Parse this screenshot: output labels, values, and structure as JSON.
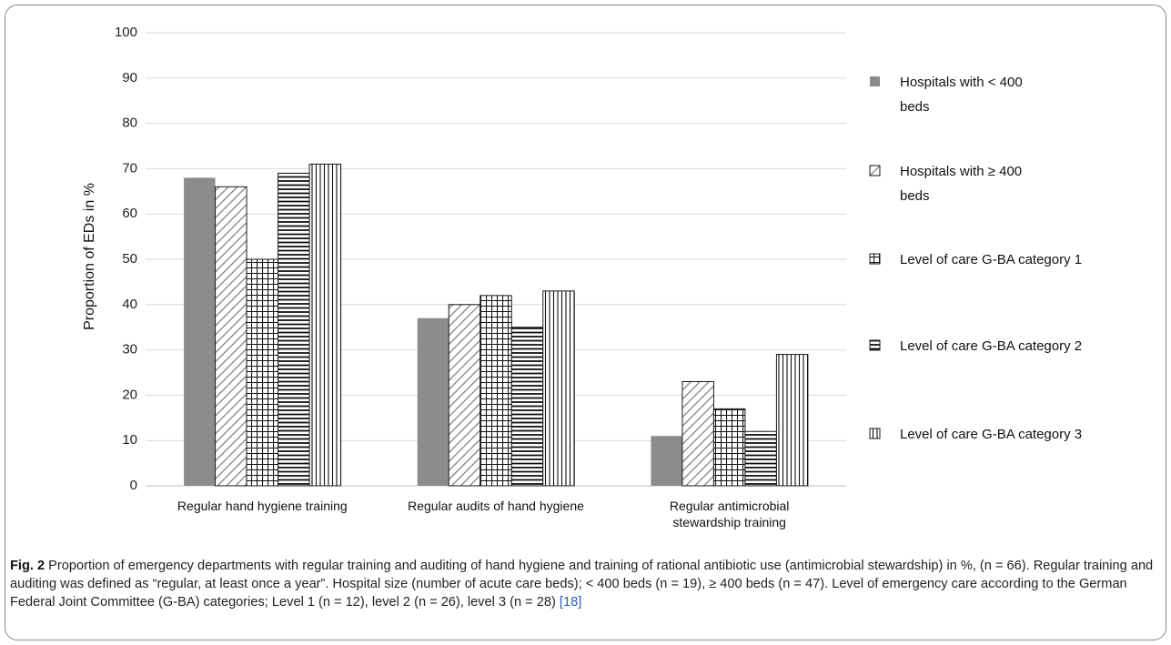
{
  "chart_data": {
    "type": "bar",
    "title": "",
    "xlabel": "",
    "ylabel": "Proportion of EDs in %",
    "ylim": [
      0,
      100
    ],
    "yticks": [
      0,
      10,
      20,
      30,
      40,
      50,
      60,
      70,
      80,
      90,
      100
    ],
    "grid": true,
    "legend_position": "right",
    "categories": [
      [
        "Regular hand hygiene training"
      ],
      [
        "Regular audits of hand hygiene"
      ],
      [
        "Regular antimicrobial",
        "stewardship training"
      ]
    ],
    "series": [
      {
        "name_lines": [
          "Hospitals with < 400",
          "beds"
        ],
        "pattern": "solid-gray",
        "values": [
          68,
          37,
          11
        ]
      },
      {
        "name_lines": [
          "Hospitals with ≥ 400",
          "beds"
        ],
        "pattern": "diagonal-hatch",
        "values": [
          66,
          40,
          23
        ]
      },
      {
        "name_lines": [
          "Level of care G-BA category 1"
        ],
        "pattern": "grid",
        "values": [
          50,
          42,
          17
        ]
      },
      {
        "name_lines": [
          "Level of care G-BA category 2"
        ],
        "pattern": "horizontal-lines",
        "values": [
          69,
          35,
          12
        ]
      },
      {
        "name_lines": [
          "Level of care G-BA category 3"
        ],
        "pattern": "vertical-lines",
        "values": [
          71,
          43,
          29
        ]
      }
    ]
  },
  "caption": {
    "label": "Fig. 2",
    "text": "Proportion of emergency departments with regular training and auditing of hand hygiene and training of rational antibiotic use (antimicrobial stewardship) in %, (n = 66). Regular training and auditing was defined as “regular, at least once a year”. Hospital size (number of acute care beds); < 400 beds (n = 19), ≥ 400 beds (n = 47). Level of emergency care according to the German Federal Joint Committee (G-BA) categories; Level 1 (n = 12), level 2 (n = 26), level 3 (n = 28)",
    "ref": "[18]"
  },
  "colors": {
    "bar_gray": "#8c8c8c",
    "stroke": "#1a1a1a",
    "grid": "#d9d9d9",
    "axis": "#bfbfbf",
    "link": "#2a5db0"
  }
}
